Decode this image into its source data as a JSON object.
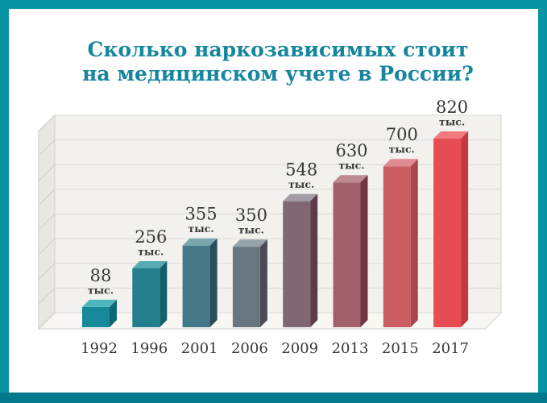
{
  "title": {
    "line1": "Сколько наркозависимых стоит",
    "line2": "на медицинском учете в России?"
  },
  "chart_data": {
    "type": "bar",
    "title": "Сколько наркозависимых стоит на медицинском учете в России?",
    "categories": [
      "1992",
      "1996",
      "2001",
      "2006",
      "2009",
      "2013",
      "2015",
      "2017"
    ],
    "values": [
      88,
      256,
      355,
      350,
      548,
      630,
      700,
      820
    ],
    "value_unit": "тыс.",
    "xlabel": "",
    "ylabel": "",
    "ylim": [
      0,
      870
    ],
    "gridlines": 9,
    "grid_on": true,
    "legend": "none",
    "style": "pseudo-3d bars on gray panel with left wall and floor",
    "colors": {
      "frame": "#0794a5",
      "frame_bottom": "#04798b",
      "title_text": "#16869e",
      "label_text": "#373737",
      "panel_bg": "#f2f1ee",
      "panel_border": "#d2d0cc",
      "grid_line": "#dcdad6",
      "wall_bg": "#e9e7e4",
      "wall_line": "#cfcdc9",
      "floor_bg": "#f8f7f4"
    },
    "bar_colors": [
      {
        "front": "#17899a",
        "top": "#4fb5bd",
        "side": "#0d6875"
      },
      {
        "front": "#237f8e",
        "top": "#57a9b2",
        "side": "#14606d"
      },
      {
        "front": "#44798a",
        "top": "#79a7ae",
        "side": "#2a4d57"
      },
      {
        "front": "#687682",
        "top": "#96a3ab",
        "side": "#4a4b55"
      },
      {
        "front": "#806772",
        "top": "#a39ca5",
        "side": "#5c3c49"
      },
      {
        "front": "#a2616a",
        "top": "#bd8b91",
        "side": "#6f3840"
      },
      {
        "front": "#cb5e63",
        "top": "#df8b8f",
        "side": "#ad454c"
      },
      {
        "front": "#e64d52",
        "top": "#f0797e",
        "side": "#c63840"
      }
    ]
  }
}
